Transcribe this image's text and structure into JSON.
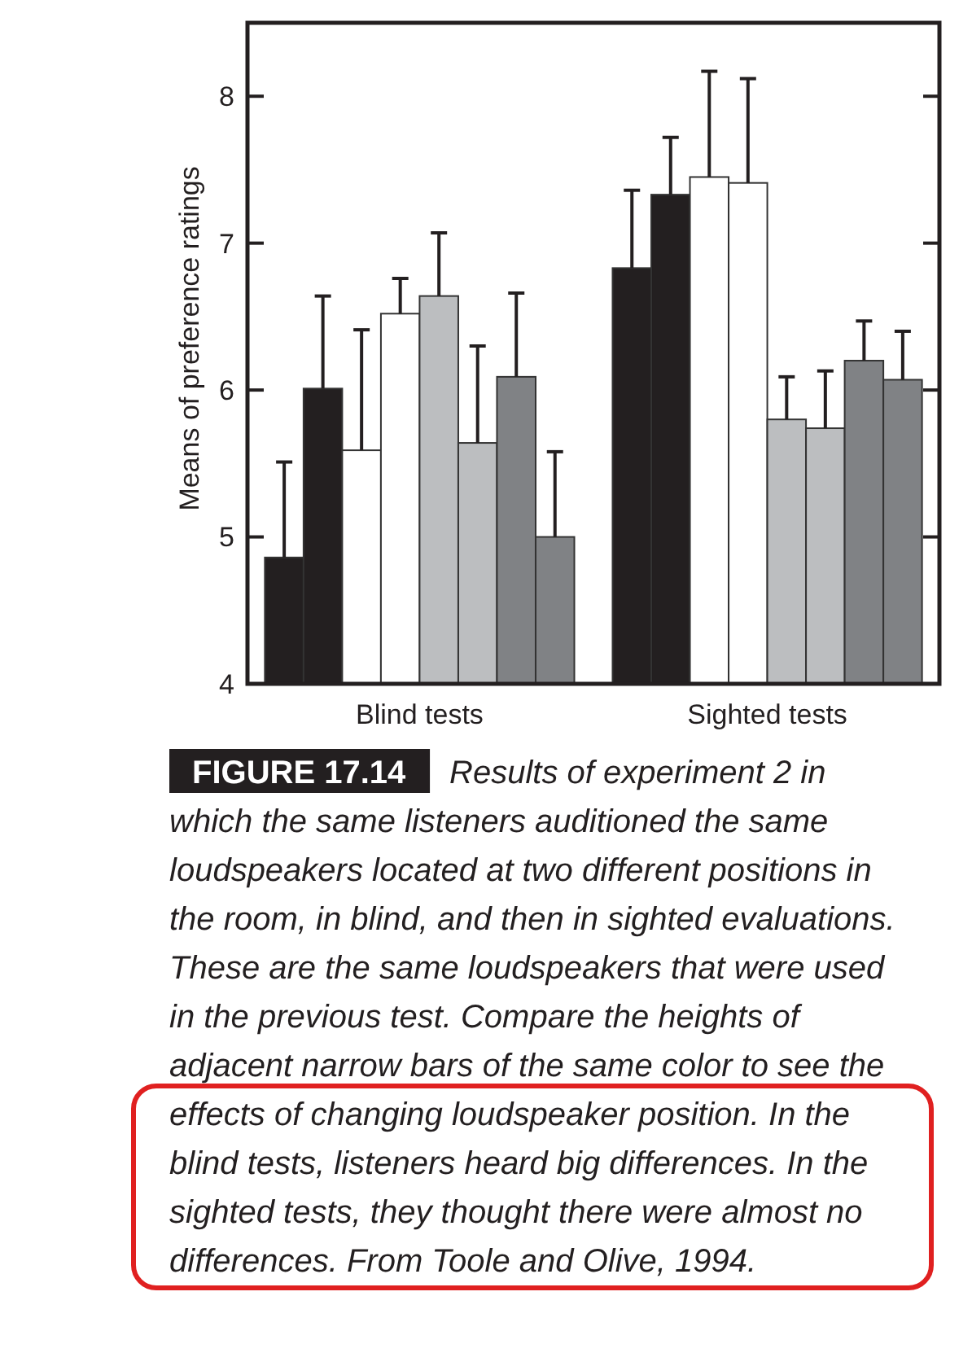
{
  "chart_data": {
    "type": "bar",
    "categories": [
      "Blind tests",
      "Sighted tests"
    ],
    "ylabel": "Means of preference ratings",
    "ylim": [
      4,
      8.5
    ],
    "yticks": [
      4,
      5,
      6,
      7,
      8
    ],
    "series": [
      {
        "color": "#231f20",
        "values": [
          4.86,
          6.83
        ],
        "errors": [
          [
            4.86,
            5.51
          ],
          [
            6.83,
            7.36
          ]
        ]
      },
      {
        "color": "#231f20",
        "values": [
          6.01,
          7.33
        ],
        "errors": [
          [
            6.01,
            6.64
          ],
          [
            7.33,
            7.72
          ]
        ]
      },
      {
        "color": "#ffffff",
        "values": [
          5.59,
          7.45
        ],
        "errors": [
          [
            5.59,
            6.41
          ],
          [
            7.45,
            8.17
          ]
        ]
      },
      {
        "color": "#ffffff",
        "values": [
          6.52,
          7.41
        ],
        "errors": [
          [
            6.52,
            6.76
          ],
          [
            7.41,
            8.12
          ]
        ]
      },
      {
        "color": "#bcbec0",
        "values": [
          6.64,
          5.8
        ],
        "errors": [
          [
            6.64,
            7.07
          ],
          [
            5.8,
            6.09
          ]
        ]
      },
      {
        "color": "#bcbec0",
        "values": [
          5.64,
          5.74
        ],
        "errors": [
          [
            5.64,
            6.3
          ],
          [
            5.74,
            6.13
          ]
        ]
      },
      {
        "color": "#808285",
        "values": [
          6.09,
          6.2
        ],
        "errors": [
          [
            6.09,
            6.66
          ],
          [
            6.2,
            6.47
          ]
        ]
      },
      {
        "color": "#808285",
        "values": [
          5.0,
          6.07
        ],
        "errors": [
          [
            5.0,
            5.58
          ],
          [
            6.07,
            6.4
          ]
        ]
      }
    ],
    "grid": false,
    "annotations": [
      "FIGURE 17.14",
      "Results of experiment 2 in which the same listeners auditioned the same loudspeakers located at two different positions in the room, in blind, and then in sighted evaluations. These are the same loudspeakers that were used in the previous test. Compare the heights of adjacent narrow bars of the same color to see the effects of changing loudspeaker position. In the blind tests, listeners heard big differences. In the sighted tests, they thought there were almost no differences. From Toole and Olive, 1994."
    ]
  }
}
